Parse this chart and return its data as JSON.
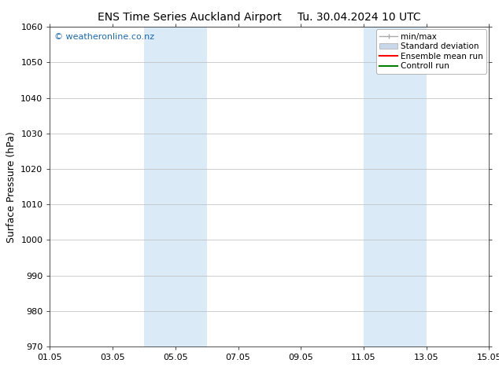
{
  "title": "ENS Time Series Auckland Airport",
  "title2": "Tu. 30.04.2024 10 UTC",
  "ylabel": "Surface Pressure (hPa)",
  "ylim": [
    970,
    1060
  ],
  "yticks": [
    970,
    980,
    990,
    1000,
    1010,
    1020,
    1030,
    1040,
    1050,
    1060
  ],
  "xlim": [
    0,
    14
  ],
  "xtick_labels": [
    "01.05",
    "03.05",
    "05.05",
    "07.05",
    "09.05",
    "11.05",
    "13.05",
    "15.05"
  ],
  "xtick_positions": [
    0,
    2,
    4,
    6,
    8,
    10,
    12,
    14
  ],
  "shaded_regions": [
    {
      "xmin": 3.0,
      "xmax": 5.0,
      "color": "#daeaf7"
    },
    {
      "xmin": 10.0,
      "xmax": 12.0,
      "color": "#daeaf7"
    }
  ],
  "watermark": "© weatheronline.co.nz",
  "watermark_color": "#1a6ab5",
  "bg_color": "#ffffff",
  "grid_color": "#bbbbbb",
  "title_fontsize": 10,
  "tick_fontsize": 8,
  "ylabel_fontsize": 9,
  "legend_fontsize": 7.5,
  "minmax_color": "#aaaaaa",
  "std_color": "#c8d8ea",
  "ensemble_color": "#ff0000",
  "control_color": "#008000"
}
